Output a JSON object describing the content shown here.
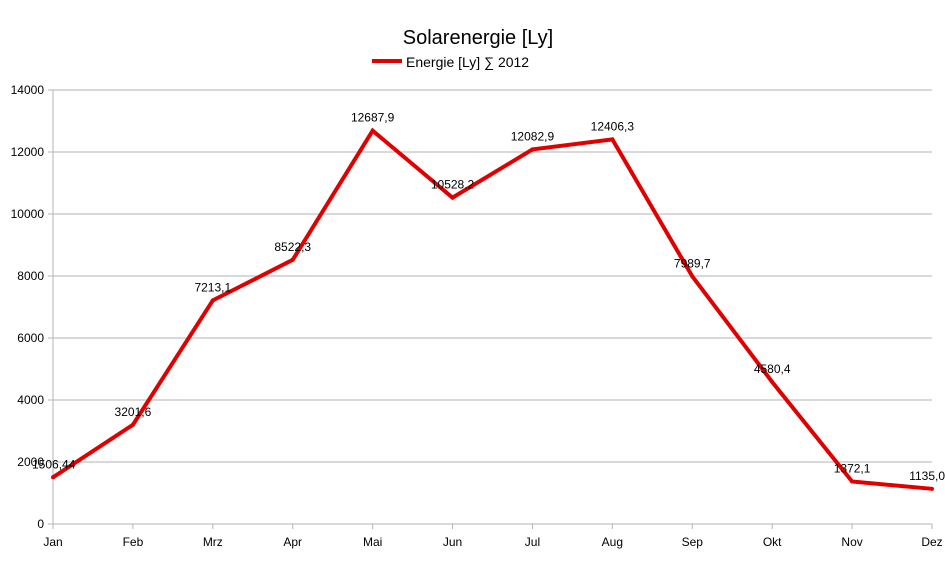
{
  "chart_data": {
    "type": "line",
    "title": "Solarenergie [Ly]",
    "xlabel": "",
    "ylabel": "",
    "ylim": [
      0,
      14000
    ],
    "yticks": [
      0,
      2000,
      4000,
      6000,
      8000,
      10000,
      12000,
      14000
    ],
    "grid": true,
    "legend_position": "top",
    "categories": [
      "Jan",
      "Feb",
      "Mrz",
      "Apr",
      "Mai",
      "Jun",
      "Jul",
      "Aug",
      "Sep",
      "Okt",
      "Nov",
      "Dez"
    ],
    "series": [
      {
        "name": "Energie [Ly] ∑ 2012",
        "color": "#e00000",
        "values": [
          1506.44,
          3201.6,
          7213.1,
          8522.3,
          12687.9,
          10528.2,
          12082.9,
          12406.3,
          7989.7,
          4580.4,
          1372.1,
          1135.0
        ],
        "labels": [
          "1506,44",
          "3201,6",
          "7213,1",
          "8522,3",
          "12687,9",
          "10528,2",
          "12082,9",
          "12406,3",
          "7989,7",
          "4580,4",
          "1372,1",
          "1135,0"
        ]
      }
    ]
  }
}
